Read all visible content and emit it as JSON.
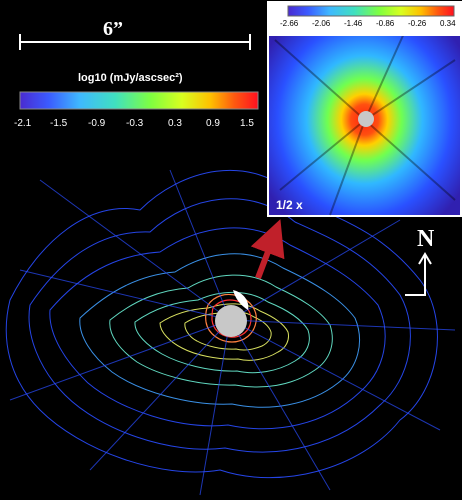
{
  "scale": {
    "label": "6”"
  },
  "colorbar": {
    "title": "log10 (mJy/ascsec²)",
    "ticks": [
      "-2.1",
      "-1.5",
      "-0.9",
      "-0.3",
      "0.3",
      "0.9",
      "1.5"
    ]
  },
  "inset": {
    "label": "1/2 x",
    "colorbar_ticks": [
      "-2.66",
      "-2.06",
      "-1.46",
      "-0.86",
      "-0.26",
      "0.34"
    ]
  },
  "compass": {
    "north": "N"
  },
  "colors": {
    "background": "#000000",
    "contour_outer": "#2a4dff",
    "contour_mid": "#7fe0a0",
    "contour_inner": "#d8e060",
    "core": "#ff3b2a",
    "arrow": "#c0202a"
  }
}
